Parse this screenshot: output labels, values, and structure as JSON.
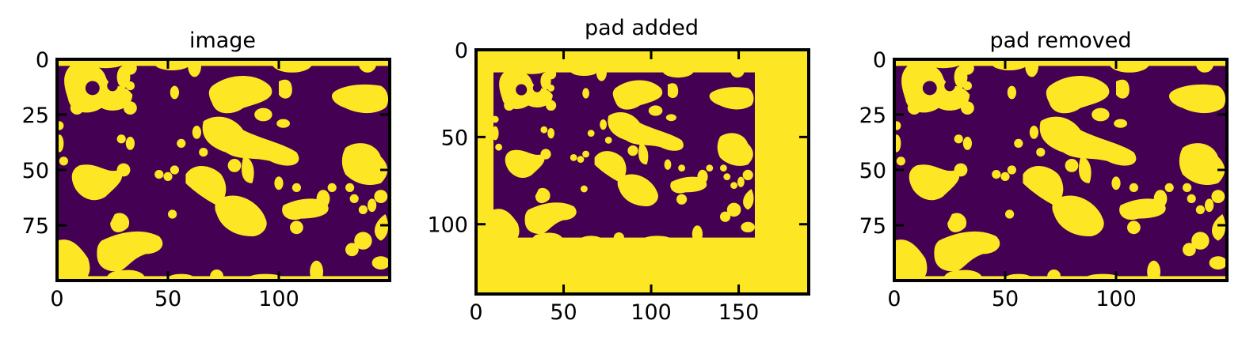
{
  "chart_data": [
    {
      "type": "heatmap",
      "title": "image",
      "xlabel": "",
      "ylabel": "",
      "colormap": "viridis",
      "values_range": [
        0,
        1
      ],
      "xlim": [
        0,
        150
      ],
      "ylim": [
        100,
        0
      ],
      "xticks": [
        0,
        50,
        100
      ],
      "yticks": [
        0,
        25,
        50,
        75
      ],
      "grid": false,
      "pad": [
        0,
        0,
        0,
        0
      ]
    },
    {
      "type": "heatmap",
      "title": "pad added",
      "xlabel": "",
      "ylabel": "",
      "colormap": "viridis",
      "values_range": [
        0,
        1
      ],
      "xlim": [
        0,
        190
      ],
      "ylim": [
        140,
        0
      ],
      "xticks": [
        0,
        50,
        100,
        150
      ],
      "yticks": [
        0,
        50,
        100
      ],
      "grid": false,
      "pad": [
        8,
        10,
        30,
        30
      ]
    },
    {
      "type": "heatmap",
      "title": "pad removed",
      "xlabel": "",
      "ylabel": "",
      "colormap": "viridis",
      "values_range": [
        0,
        1
      ],
      "xlim": [
        0,
        150
      ],
      "ylim": [
        100,
        0
      ],
      "xticks": [
        0,
        50,
        100
      ],
      "yticks": [
        0,
        25,
        50,
        75
      ],
      "grid": false,
      "pad": [
        0,
        0,
        0,
        0
      ]
    }
  ],
  "colors": {
    "low": "#440154",
    "high": "#fde725",
    "frame": "#000000"
  }
}
